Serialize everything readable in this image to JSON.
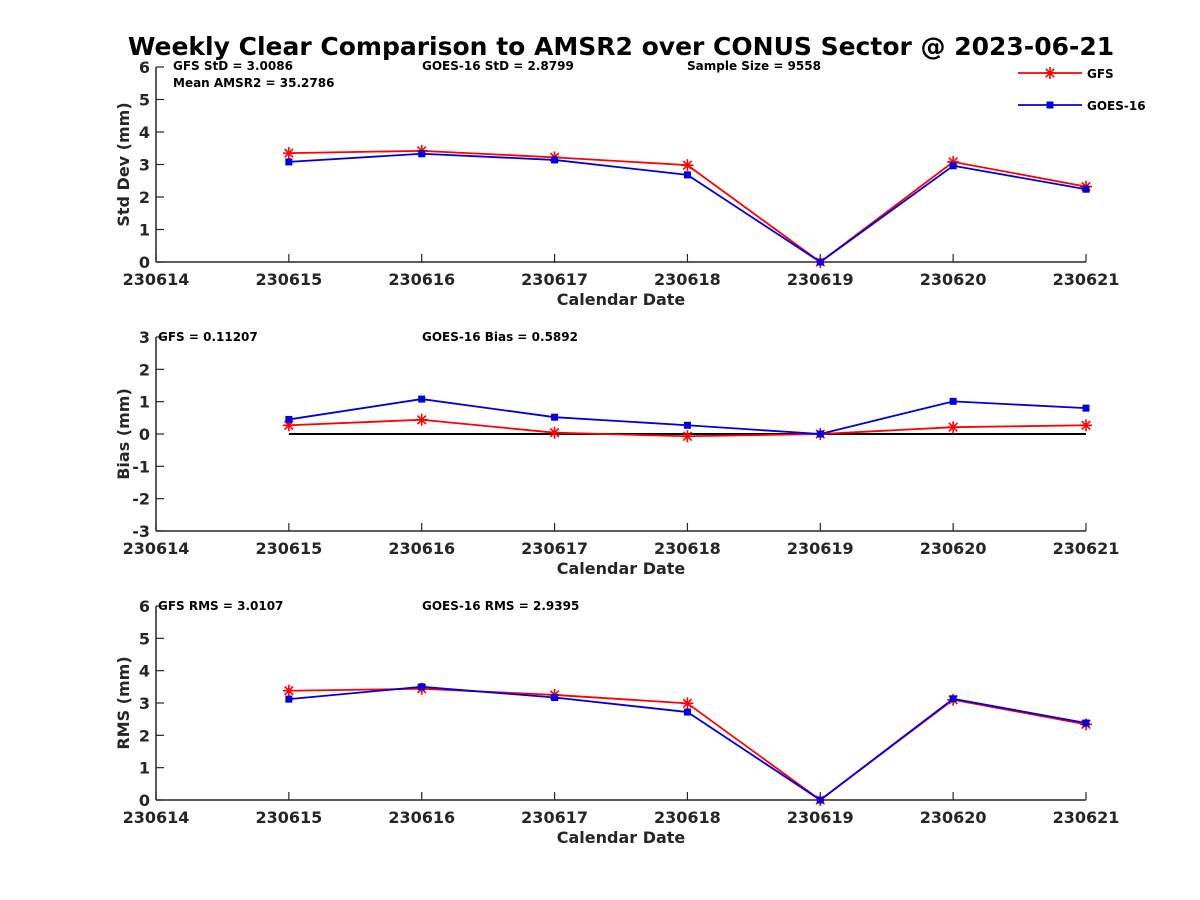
{
  "chart_data": [
    {
      "type": "line",
      "title": "Weekly Clear Comparison to AMSR2 over CONUS Sector @ 2023-06-21",
      "xlabel": "Calendar Date",
      "ylabel": "Std Dev (mm)",
      "x_ticks": [
        "230614",
        "230615",
        "230616",
        "230617",
        "230618",
        "230619",
        "230620",
        "230621"
      ],
      "ylim": [
        0,
        6
      ],
      "y_ticks": [
        "0",
        "1",
        "2",
        "3",
        "4",
        "5",
        "6"
      ],
      "annotations": [
        {
          "text": "GFS StD = 3.0086"
        },
        {
          "text": "Mean AMSR2 = 35.2786"
        },
        {
          "text": "GOES-16 StD = 2.8799"
        },
        {
          "text": "Sample Size = 9558"
        }
      ],
      "legend": {
        "placement": "top-right",
        "entries": [
          "GFS",
          "GOES-16"
        ]
      },
      "series": [
        {
          "name": "GFS",
          "color": "#ff0000",
          "marker": "asterisk",
          "x": [
            "230615",
            "230616",
            "230617",
            "230618",
            "230619",
            "230620",
            "230621"
          ],
          "values": [
            3.35,
            3.42,
            3.22,
            2.98,
            0.0,
            3.08,
            2.32
          ]
        },
        {
          "name": "GOES-16",
          "color": "#0000dd",
          "marker": "square",
          "x": [
            "230615",
            "230616",
            "230617",
            "230618",
            "230619",
            "230620",
            "230621"
          ],
          "values": [
            3.08,
            3.33,
            3.14,
            2.68,
            0.0,
            2.96,
            2.24
          ]
        }
      ]
    },
    {
      "type": "line",
      "xlabel": "Calendar Date",
      "ylabel": "Bias (mm)",
      "x_ticks": [
        "230614",
        "230615",
        "230616",
        "230617",
        "230618",
        "230619",
        "230620",
        "230621"
      ],
      "ylim": [
        -3,
        3
      ],
      "y_ticks": [
        "-3",
        "-2",
        "-1",
        "0",
        "1",
        "2",
        "3"
      ],
      "zero_line": true,
      "annotations": [
        {
          "text": "GFS = 0.11207"
        },
        {
          "text": "GOES-16 Bias  = 0.5892"
        }
      ],
      "series": [
        {
          "name": "GFS",
          "color": "#ff0000",
          "marker": "asterisk",
          "x": [
            "230615",
            "230616",
            "230617",
            "230618",
            "230619",
            "230620",
            "230621"
          ],
          "values": [
            0.27,
            0.44,
            0.04,
            -0.07,
            0.0,
            0.21,
            0.27
          ]
        },
        {
          "name": "GOES-16",
          "color": "#0000dd",
          "marker": "square",
          "x": [
            "230615",
            "230616",
            "230617",
            "230618",
            "230619",
            "230620",
            "230621"
          ],
          "values": [
            0.45,
            1.08,
            0.52,
            0.27,
            0.0,
            1.01,
            0.8
          ]
        }
      ]
    },
    {
      "type": "line",
      "xlabel": "Calendar Date",
      "ylabel": "RMS (mm)",
      "x_ticks": [
        "230614",
        "230615",
        "230616",
        "230617",
        "230618",
        "230619",
        "230620",
        "230621"
      ],
      "ylim": [
        0,
        6
      ],
      "y_ticks": [
        "0",
        "1",
        "2",
        "3",
        "4",
        "5",
        "6"
      ],
      "annotations": [
        {
          "text": "GFS RMS = 3.0107"
        },
        {
          "text": "GOES-16 RMS = 2.9395"
        }
      ],
      "series": [
        {
          "name": "GFS",
          "color": "#ff0000",
          "marker": "asterisk",
          "x": [
            "230615",
            "230616",
            "230617",
            "230618",
            "230619",
            "230620",
            "230621"
          ],
          "values": [
            3.38,
            3.44,
            3.25,
            2.99,
            0.0,
            3.1,
            2.34
          ]
        },
        {
          "name": "GOES-16",
          "color": "#0000dd",
          "marker": "square",
          "x": [
            "230615",
            "230616",
            "230617",
            "230618",
            "230619",
            "230620",
            "230621"
          ],
          "values": [
            3.12,
            3.5,
            3.17,
            2.72,
            0.0,
            3.13,
            2.38
          ]
        }
      ]
    }
  ]
}
